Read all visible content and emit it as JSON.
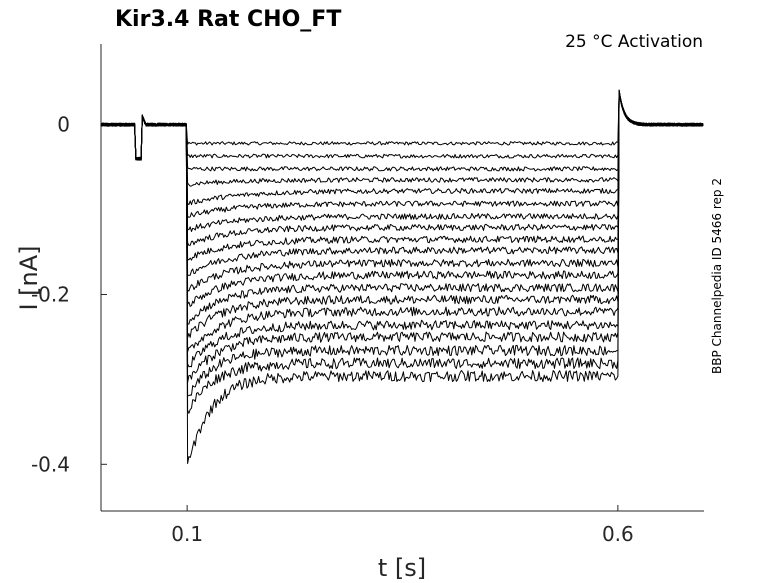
{
  "chart_data": {
    "type": "line",
    "title": "Kir3.4  Rat  CHO_FT",
    "subtitle": "25 °C  Activation",
    "side_text": "BBP Channelpedia ID 5466 rep 2",
    "xlabel": "t [s]",
    "ylabel": "I [nA]",
    "xlim": [
      0.0,
      0.7
    ],
    "ylim": [
      -0.455,
      0.095
    ],
    "xticks": [
      0.1,
      0.6
    ],
    "xtick_labels": [
      "0.1",
      "0.6"
    ],
    "yticks": [
      0,
      -0.2,
      -0.4
    ],
    "ytick_labels": [
      "0",
      "-0.2",
      "-0.4"
    ],
    "grid": false,
    "prepulse": {
      "start": 0.04,
      "end": 0.048,
      "level": -0.04
    },
    "step": {
      "start": 0.1,
      "end": 0.6
    },
    "series_end_levels": [
      -0.022,
      -0.037,
      -0.052,
      -0.065,
      -0.078,
      -0.093,
      -0.108,
      -0.121,
      -0.135,
      -0.148,
      -0.163,
      -0.177,
      -0.192,
      -0.206,
      -0.22,
      -0.236,
      -0.25,
      -0.266,
      -0.281,
      -0.296
    ],
    "series_start_levels": [
      -0.022,
      -0.037,
      -0.052,
      -0.07,
      -0.093,
      -0.108,
      -0.124,
      -0.141,
      -0.158,
      -0.176,
      -0.195,
      -0.214,
      -0.232,
      -0.251,
      -0.27,
      -0.287,
      -0.304,
      -0.322,
      -0.34,
      -0.405
    ],
    "noise_amplitude_nA": 0.004
  },
  "colors": {
    "trace": "#000000",
    "axis": "#262626"
  }
}
